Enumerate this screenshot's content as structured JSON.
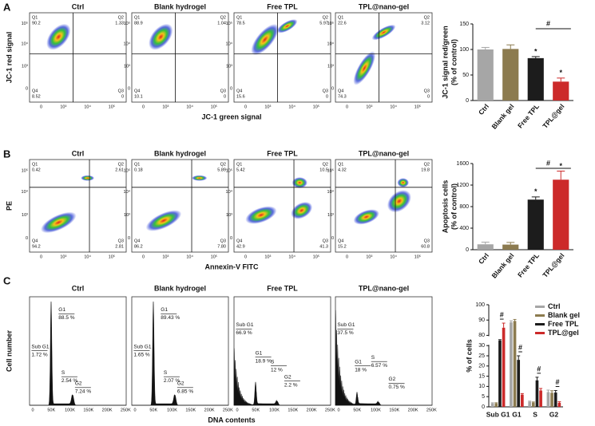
{
  "panel_a": {
    "label": "A",
    "x_label": "JC-1 green signal",
    "y_label": "JC-1 red signal",
    "quadrant_names": [
      "Q1",
      "Q2",
      "Q4",
      "Q3"
    ],
    "x_ticks": [
      "0",
      "10³",
      "10⁴",
      "10⁵"
    ],
    "y_ticks": [
      "10⁵",
      "10⁴",
      "10³",
      "0"
    ],
    "plots": [
      {
        "title": "Ctrl",
        "quadrants": [
          "90.2",
          "1.33",
          "8.52",
          "0"
        ]
      },
      {
        "title": "Blank hydrogel",
        "quadrants": [
          "88.9",
          "1.04",
          "10.1",
          "0"
        ]
      },
      {
        "title": "Free TPL",
        "quadrants": [
          "78.5",
          "5.97",
          "15.6",
          "0"
        ]
      },
      {
        "title": "TPL@nano-gel",
        "quadrants": [
          "22.6",
          "3.12",
          "74.3",
          "0"
        ]
      }
    ]
  },
  "panel_b": {
    "label": "B",
    "x_label": "Annexin-V  FITC",
    "y_label": "PE",
    "quadrant_names": [
      "Q1",
      "Q2",
      "Q4",
      "Q3"
    ],
    "x_ticks": [
      "0",
      "10³",
      "10⁴",
      "10⁵"
    ],
    "y_ticks": [
      "10⁵",
      "10⁴",
      "10³",
      "0"
    ],
    "plots": [
      {
        "title": "Ctrl",
        "quadrants": [
          "0.42",
          "2.61",
          "94.2",
          "2.81"
        ]
      },
      {
        "title": "Blank hydrogel",
        "quadrants": [
          "0.18",
          "5.89",
          "86.2",
          "7.80"
        ]
      },
      {
        "title": "Free TPL",
        "quadrants": [
          "5.42",
          "10.5",
          "42.9",
          "41.3"
        ]
      },
      {
        "title": "TPL@nano-gel",
        "quadrants": [
          "4.32",
          "19.8",
          "15.2",
          "60.8"
        ]
      }
    ]
  },
  "panel_c": {
    "label": "C",
    "x_label": "DNA contents",
    "y_label": "Cell number",
    "x_ticks": [
      "0",
      "50K",
      "100K",
      "150K",
      "200K",
      "250K"
    ],
    "plots": [
      {
        "title": "Ctrl",
        "phases": [
          {
            "name": "Sub G1",
            "value": "1.72 %"
          },
          {
            "name": "G1",
            "value": "88.5 %"
          },
          {
            "name": "S",
            "value": "2.54 %"
          },
          {
            "name": "G2",
            "value": "7.24 %"
          }
        ]
      },
      {
        "title": "Blank hydrogel",
        "phases": [
          {
            "name": "Sub G1",
            "value": "1.65 %"
          },
          {
            "name": "G1",
            "value": "89.43 %"
          },
          {
            "name": "S",
            "value": "2.07 %"
          },
          {
            "name": "G2",
            "value": "6.85 %"
          }
        ]
      },
      {
        "title": "Free TPL",
        "phases": [
          {
            "name": "Sub G1",
            "value": "66.9 %"
          },
          {
            "name": "G1",
            "value": "18.9 %"
          },
          {
            "name": "S",
            "value": "12 %"
          },
          {
            "name": "G2",
            "value": "2.2 %"
          }
        ]
      },
      {
        "title": "TPL@nano-gel",
        "phases": [
          {
            "name": "Sub G1",
            "value": "37.5 %"
          },
          {
            "name": "G1",
            "value": "18 %"
          },
          {
            "name": "S",
            "value": "6.57 %"
          },
          {
            "name": "G2",
            "value": "0.75 %"
          }
        ]
      }
    ]
  },
  "chart_data": [
    {
      "type": "bar",
      "y_label": [
        "JC-1 signal red/green",
        "(% of control)"
      ],
      "categories": [
        "Ctrl",
        "Blank gel",
        "Free TPL",
        "TPL@gel"
      ],
      "values": [
        100,
        101,
        83,
        37
      ],
      "errors": [
        4,
        8,
        3,
        7
      ],
      "colors": [
        "#a6a6a6",
        "#8c7b4f",
        "#1c1c1c",
        "#cc2a2a"
      ],
      "ylim": [
        0,
        150
      ],
      "yticks": [
        0,
        50,
        100,
        150
      ],
      "annotations": {
        "star": "*",
        "hash": "#"
      }
    },
    {
      "type": "bar",
      "y_label": [
        "Apoptosis cells",
        "(% of control)"
      ],
      "categories": [
        "Ctrl",
        "Blank gel",
        "Free TPL",
        "TPL@gel"
      ],
      "values": [
        100,
        95,
        930,
        1300
      ],
      "errors": [
        40,
        40,
        50,
        160
      ],
      "colors": [
        "#a6a6a6",
        "#8c7b4f",
        "#1c1c1c",
        "#cc2a2a"
      ],
      "ylim": [
        0,
        1600
      ],
      "yticks": [
        0,
        400,
        800,
        1200,
        1600
      ],
      "annotations": {
        "star": "*",
        "hash": "#"
      }
    },
    {
      "type": "grouped_bar",
      "y_label": [
        "% of cells"
      ],
      "categories": [
        "Sub G1",
        "G1",
        "S",
        "G2"
      ],
      "series": [
        {
          "name": "Ctrl",
          "color": "#a6a6a6",
          "values": [
            1.7,
            88.5,
            2.5,
            7.2
          ],
          "errors": [
            0.3,
            1,
            0.3,
            1
          ]
        },
        {
          "name": "Blank gel",
          "color": "#8c7b4f",
          "values": [
            1.7,
            89.4,
            2.1,
            6.9
          ],
          "errors": [
            0.3,
            1,
            0.3,
            1
          ]
        },
        {
          "name": "Free TPL",
          "color": "#1c1c1c",
          "values": [
            55,
            23,
            13,
            7
          ],
          "errors": [
            4,
            2,
            1.5,
            1
          ]
        },
        {
          "name": "TPL@gel",
          "color": "#cc2a2a",
          "values": [
            85,
            6,
            8,
            2
          ],
          "errors": [
            3,
            0.5,
            1,
            0.5
          ]
        }
      ],
      "ylim": [
        0,
        100
      ],
      "axis_break": [
        30,
        80
      ],
      "yticks": [
        0,
        5,
        10,
        15,
        20,
        25,
        30,
        80,
        90,
        100
      ],
      "legend": "upper right",
      "annotations": {
        "hash": "#"
      }
    }
  ]
}
